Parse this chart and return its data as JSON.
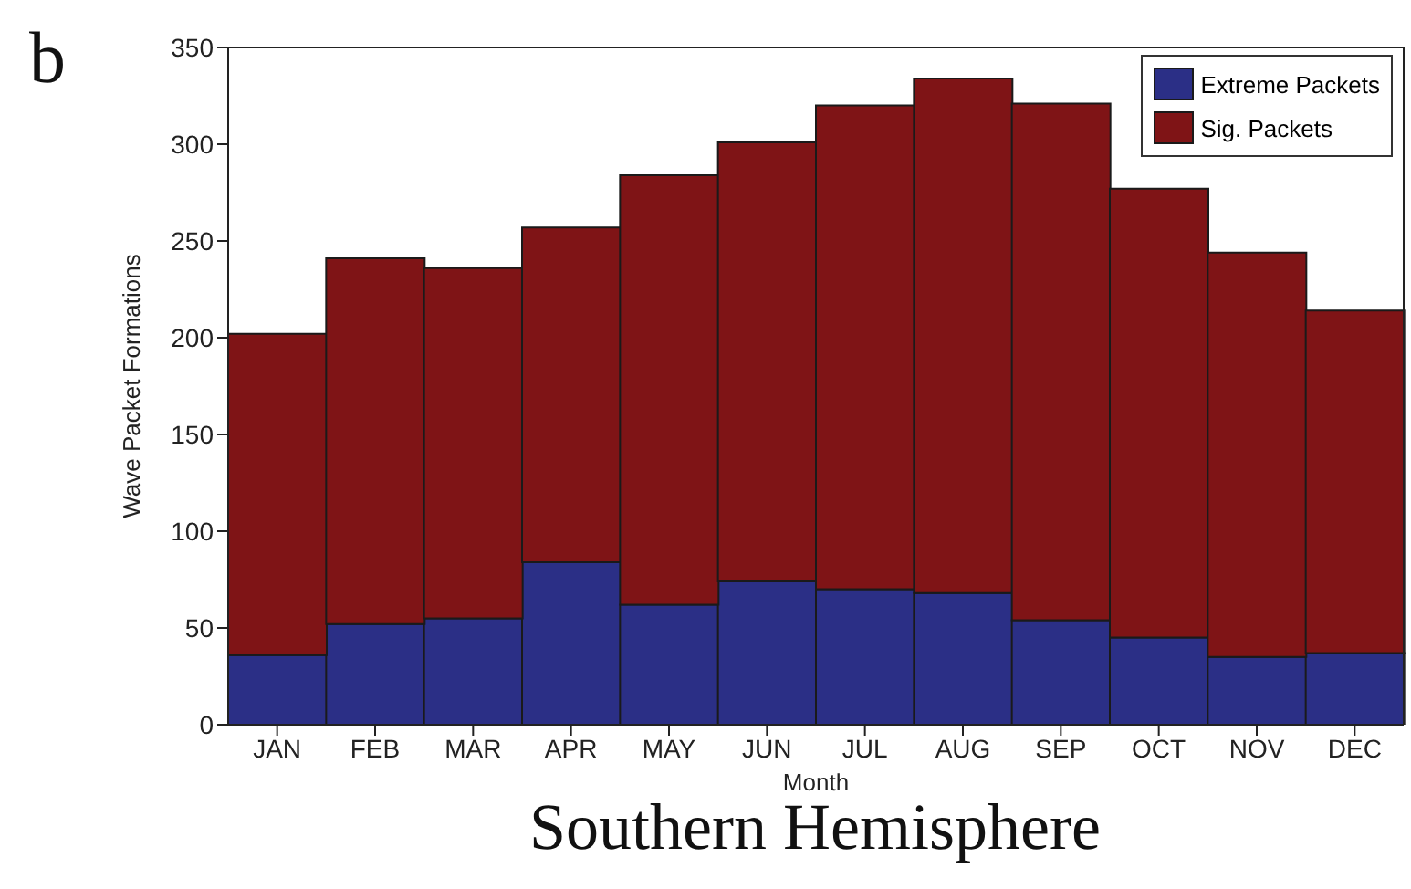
{
  "chart_data": {
    "type": "bar",
    "title": "Southern Hemisphere",
    "annotations": [
      "b"
    ],
    "xlabel": "Month",
    "ylabel": "Wave Packet Formations",
    "categories": [
      "JAN",
      "FEB",
      "MAR",
      "APR",
      "MAY",
      "JUN",
      "JUL",
      "AUG",
      "SEP",
      "OCT",
      "NOV",
      "DEC"
    ],
    "stacked": true,
    "series": [
      {
        "name": "Extreme Packets",
        "color": "#2b2f86",
        "values": [
          36,
          52,
          55,
          84,
          62,
          74,
          70,
          68,
          54,
          45,
          35,
          37
        ]
      },
      {
        "name": "Sig. Packets",
        "color": "#7f1416",
        "values": [
          166,
          189,
          181,
          173,
          222,
          227,
          250,
          266,
          267,
          232,
          209,
          177
        ]
      }
    ],
    "ylim": [
      0,
      350
    ],
    "yticks": [
      0,
      50,
      100,
      150,
      200,
      250,
      300,
      350
    ],
    "grid": false,
    "legend": "top right"
  }
}
